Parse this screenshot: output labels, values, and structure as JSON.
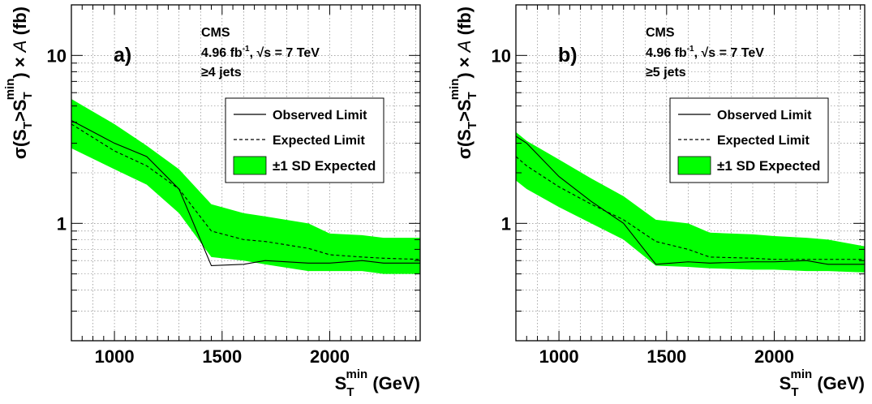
{
  "chart_data": [
    {
      "type": "line",
      "panel_label": "a)",
      "experiment": "CMS",
      "lumi_prefix": "4.96 fb",
      "lumi_sup": "-1",
      "energy_label": "√s = 7 TeV",
      "selection": "≥4 jets",
      "xlabel_main": "S",
      "xlabel_sub": "T",
      "xlabel_sup": "min",
      "xlabel_unit": "(GeV)",
      "ylabel": "σ(S_T>S_T^min) × A (fb)",
      "yscale": "log",
      "xlim": [
        800,
        2420
      ],
      "ylim": [
        0.2,
        20
      ],
      "xticks": [
        1000,
        1500,
        2000
      ],
      "yticks": [
        {
          "value": 1,
          "label": "1"
        },
        {
          "value": 10,
          "label": "10"
        }
      ],
      "grid": true,
      "legend_position": "right-middle",
      "legend": [
        "Observed Limit",
        "Expected Limit",
        "±1 SD Expected"
      ],
      "colors": {
        "band": "#00ff00",
        "observed": "#000000",
        "expected": "#000000"
      },
      "x": [
        800,
        1000,
        1150,
        1300,
        1450,
        1600,
        1700,
        1900,
        2000,
        2150,
        2250,
        2420
      ],
      "series": [
        {
          "name": "Observed Limit",
          "style": "solid",
          "values": [
            4.1,
            3.0,
            2.5,
            1.6,
            0.56,
            0.57,
            0.6,
            0.58,
            0.58,
            0.6,
            0.58,
            0.58
          ]
        },
        {
          "name": "Expected Limit",
          "style": "dashed",
          "values": [
            3.9,
            2.7,
            2.2,
            1.6,
            0.9,
            0.8,
            0.78,
            0.71,
            0.65,
            0.63,
            0.62,
            0.61
          ]
        }
      ],
      "band": {
        "name": "±1 SD Expected",
        "upper": [
          5.5,
          3.9,
          2.9,
          2.1,
          1.3,
          1.15,
          1.1,
          1.0,
          0.87,
          0.85,
          0.82,
          0.82
        ],
        "lower": [
          2.8,
          2.1,
          1.7,
          1.15,
          0.63,
          0.6,
          0.57,
          0.52,
          0.52,
          0.52,
          0.5,
          0.5
        ]
      }
    },
    {
      "type": "line",
      "panel_label": "b)",
      "experiment": "CMS",
      "lumi_prefix": "4.96 fb",
      "lumi_sup": "-1",
      "energy_label": "√s = 7 TeV",
      "selection": "≥5 jets",
      "xlabel_main": "S",
      "xlabel_sub": "T",
      "xlabel_sup": "min",
      "xlabel_unit": "(GeV)",
      "ylabel": "σ(S_T>S_T^min) × A (fb)",
      "yscale": "log",
      "xlim": [
        800,
        2420
      ],
      "ylim": [
        0.2,
        20
      ],
      "xticks": [
        1000,
        1500,
        2000
      ],
      "yticks": [
        {
          "value": 1,
          "label": "1"
        },
        {
          "value": 10,
          "label": "10"
        }
      ],
      "grid": true,
      "legend_position": "right-middle",
      "legend": [
        "Observed Limit",
        "Expected Limit",
        "±1 SD Expected"
      ],
      "colors": {
        "band": "#00ff00",
        "observed": "#000000",
        "expected": "#000000"
      },
      "x": [
        800,
        850,
        1000,
        1150,
        1300,
        1450,
        1600,
        1700,
        1900,
        2000,
        2150,
        2250,
        2420
      ],
      "series": [
        {
          "name": "Observed Limit",
          "style": "solid",
          "values": [
            3.3,
            3.0,
            1.9,
            1.35,
            1.0,
            0.57,
            0.59,
            0.58,
            0.59,
            0.59,
            0.6,
            0.57,
            0.57
          ]
        },
        {
          "name": "Expected Limit",
          "style": "dashed",
          "values": [
            2.5,
            2.2,
            1.65,
            1.3,
            1.05,
            0.78,
            0.7,
            0.63,
            0.62,
            0.61,
            0.61,
            0.61,
            0.61
          ]
        }
      ],
      "band": {
        "name": "±1 SD Expected",
        "upper": [
          3.5,
          3.1,
          2.4,
          1.85,
          1.45,
          1.05,
          1.0,
          0.88,
          0.86,
          0.84,
          0.82,
          0.8,
          0.73
        ],
        "lower": [
          1.8,
          1.6,
          1.25,
          1.0,
          0.8,
          0.56,
          0.55,
          0.54,
          0.53,
          0.53,
          0.52,
          0.52,
          0.51
        ]
      }
    }
  ]
}
